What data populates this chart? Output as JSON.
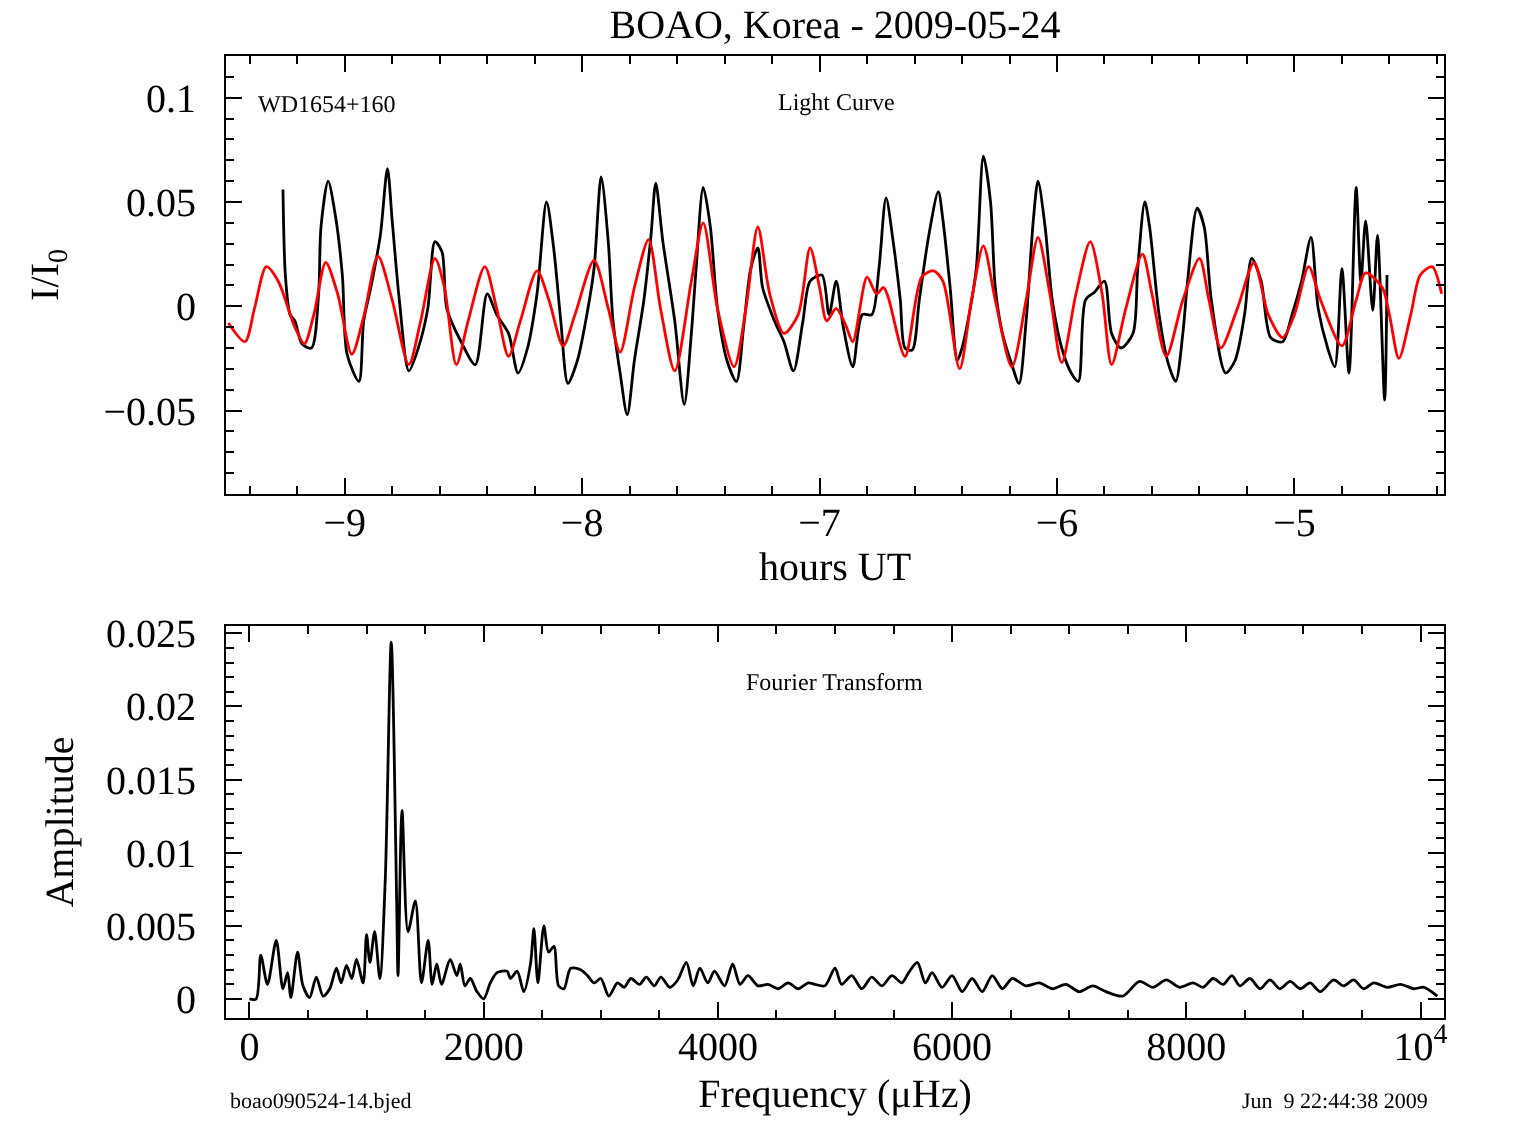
{
  "chart_data": [
    {
      "type": "line",
      "title": "BOAO, Korea - 2009-05-24",
      "xlabel": "hours UT",
      "ylabel": "I/I$_{0}$",
      "annotations": [
        "WD1654+160",
        "Light Curve"
      ],
      "xlim": [
        -9.5,
        -4.37
      ],
      "ylim": [
        -0.09,
        0.12
      ],
      "xticks": [
        {
          "value": -9.4,
          "label": null
        },
        -9,
        {
          "value": -8.8,
          "label": null
        },
        {
          "value": -8.6,
          "label": null
        },
        {
          "value": -8.4,
          "label": null
        },
        {
          "value": -8.2,
          "label": null
        },
        -8,
        {
          "value": -7.8,
          "label": null
        },
        {
          "value": -7.6,
          "label": null
        },
        {
          "value": -7.4,
          "label": null
        },
        {
          "value": -7.2,
          "label": null
        },
        -7,
        {
          "value": -6.8,
          "label": null
        },
        {
          "value": -6.6,
          "label": null
        },
        {
          "value": -6.4,
          "label": null
        },
        {
          "value": -6.2,
          "label": null
        },
        -6,
        {
          "value": -5.8,
          "label": null
        },
        {
          "value": -5.6,
          "label": null
        },
        {
          "value": -5.4,
          "label": null
        },
        {
          "value": -5.2,
          "label": null
        },
        -5,
        {
          "value": -4.8,
          "label": null
        },
        {
          "value": -4.6,
          "label": null
        },
        {
          "value": -4.4,
          "label": null
        },
        {
          "value": -9.2,
          "label": null
        }
      ],
      "yticks": [
        {
          "value": -0.08,
          "label": null
        },
        {
          "value": -0.07,
          "label": null
        },
        {
          "value": -0.06,
          "label": null
        },
        -0.05,
        {
          "value": -0.04,
          "label": null
        },
        {
          "value": -0.03,
          "label": null
        },
        {
          "value": -0.02,
          "label": null
        },
        {
          "value": -0.01,
          "label": null
        },
        0,
        {
          "value": 0.01,
          "label": null
        },
        {
          "value": 0.02,
          "label": null
        },
        {
          "value": 0.03,
          "label": null
        },
        {
          "value": 0.04,
          "label": null
        },
        0.05,
        {
          "value": 0.06,
          "label": null
        },
        {
          "value": 0.07,
          "label": null
        },
        {
          "value": 0.08,
          "label": null
        },
        {
          "value": 0.09,
          "label": null
        },
        0.1,
        {
          "value": 0.11,
          "label": null
        }
      ],
      "series": [
        {
          "color": "#000000",
          "x": [
            -9.26,
            -9.25,
            -9.23,
            -9.21,
            -9.18,
            -9.14,
            -9.11,
            -9.1,
            -9.07,
            -9.04,
            -9.01,
            -8.99,
            -8.94,
            -8.92,
            -8.89,
            -8.85,
            -8.82,
            -8.8,
            -8.77,
            -8.73,
            -8.69,
            -8.65,
            -8.62,
            -8.59,
            -8.57,
            -8.51,
            -8.45,
            -8.4,
            -8.36,
            -8.31,
            -8.27,
            -8.23,
            -8.19,
            -8.15,
            -8.12,
            -8.09,
            -8.06,
            -8.02,
            -7.98,
            -7.95,
            -7.92,
            -7.89,
            -7.87,
            -7.84,
            -7.81,
            -7.78,
            -7.74,
            -7.71,
            -7.69,
            -7.66,
            -7.61,
            -7.57,
            -7.54,
            -7.52,
            -7.49,
            -7.46,
            -7.43,
            -7.39,
            -7.35,
            -7.32,
            -7.29,
            -7.26,
            -7.24,
            -7.19,
            -7.15,
            -7.11,
            -7.07,
            -7.04,
            -6.99,
            -6.96,
            -6.93,
            -6.9,
            -6.86,
            -6.82,
            -6.78,
            -6.75,
            -6.72,
            -6.69,
            -6.66,
            -6.64,
            -6.61,
            -6.58,
            -6.54,
            -6.5,
            -6.48,
            -6.45,
            -6.42,
            -6.4,
            -6.37,
            -6.34,
            -6.31,
            -6.28,
            -6.26,
            -6.23,
            -6.19,
            -6.16,
            -6.13,
            -6.1,
            -6.08,
            -6.05,
            -6.02,
            -5.98,
            -5.94,
            -5.91,
            -5.88,
            -5.84,
            -5.8,
            -5.77,
            -5.73,
            -5.68,
            -5.66,
            -5.63,
            -5.61,
            -5.57,
            -5.53,
            -5.5,
            -5.47,
            -5.45,
            -5.41,
            -5.38,
            -5.35,
            -5.29,
            -5.25,
            -5.21,
            -5.18,
            -5.14,
            -5.1,
            -5.05,
            -5.01,
            -4.97,
            -4.93,
            -4.9,
            -4.86,
            -4.83,
            -4.8,
            -4.77,
            -4.74,
            -4.72,
            -4.7,
            -4.67,
            -4.65,
            -4.62,
            -4.61
          ],
          "values": [
            0.056,
            0.015,
            -0.004,
            -0.007,
            -0.018,
            -0.02,
            0.006,
            0.038,
            0.06,
            0.044,
            0.015,
            -0.023,
            -0.036,
            -0.007,
            0.009,
            0.034,
            0.066,
            0.041,
            0.003,
            -0.031,
            -0.02,
            -0.001,
            0.031,
            0.026,
            -0.001,
            -0.017,
            -0.028,
            0.006,
            -0.004,
            -0.013,
            -0.032,
            -0.02,
            0.006,
            0.05,
            0.028,
            -0.007,
            -0.037,
            -0.026,
            -0.004,
            0.018,
            0.062,
            0.031,
            -0.007,
            -0.032,
            -0.052,
            -0.026,
            0.003,
            0.034,
            0.059,
            0.031,
            -0.007,
            -0.047,
            -0.013,
            0.018,
            0.057,
            0.038,
            -0.001,
            -0.026,
            -0.036,
            -0.01,
            0.018,
            0.028,
            0.009,
            -0.007,
            -0.017,
            -0.031,
            -0.007,
            0.012,
            0.015,
            -0.004,
            0.012,
            -0.01,
            -0.029,
            -0.004,
            -0.004,
            0.018,
            0.052,
            0.031,
            0.003,
            -0.02,
            -0.021,
            0.003,
            0.034,
            0.055,
            0.041,
            0.009,
            -0.026,
            -0.02,
            -0.004,
            0.018,
            0.072,
            0.05,
            0.009,
            -0.013,
            -0.028,
            -0.037,
            -0.007,
            0.041,
            0.06,
            0.038,
            0.003,
            -0.02,
            -0.032,
            -0.036,
            0.003,
            0.007,
            0.012,
            -0.013,
            -0.02,
            -0.013,
            0.018,
            0.05,
            0.038,
            -0.004,
            -0.028,
            -0.036,
            -0.013,
            0.012,
            0.047,
            0.038,
            0.003,
            -0.032,
            -0.026,
            -0.004,
            0.023,
            0.012,
            -0.015,
            -0.017,
            -0.004,
            0.012,
            0.033,
            -0.001,
            -0.02,
            -0.029,
            0.018,
            -0.032,
            0.057,
            0.012,
            0.041,
            -0.002,
            0.034,
            -0.045,
            0.015
          ]
        },
        {
          "color": "#ff0000",
          "x": [
            -9.49,
            -9.42,
            -9.38,
            -9.33,
            -9.28,
            -9.21,
            -9.17,
            -9.13,
            -9.08,
            -9.03,
            -8.97,
            -8.92,
            -8.86,
            -8.8,
            -8.73,
            -8.68,
            -8.62,
            -8.58,
            -8.53,
            -8.48,
            -8.41,
            -8.36,
            -8.31,
            -8.26,
            -8.19,
            -8.14,
            -8.08,
            -8.03,
            -7.95,
            -7.89,
            -7.84,
            -7.78,
            -7.72,
            -7.67,
            -7.61,
            -7.54,
            -7.49,
            -7.43,
            -7.36,
            -7.31,
            -7.26,
            -7.21,
            -7.15,
            -7.09,
            -7.04,
            -7.0,
            -6.97,
            -6.93,
            -6.89,
            -6.86,
            -6.8,
            -6.76,
            -6.73,
            -6.71,
            -6.64,
            -6.57,
            -6.52,
            -6.48,
            -6.41,
            -6.36,
            -6.31,
            -6.26,
            -6.19,
            -6.13,
            -6.08,
            -6.03,
            -5.98,
            -5.92,
            -5.86,
            -5.81,
            -5.77,
            -5.71,
            -5.64,
            -5.6,
            -5.54,
            -5.47,
            -5.4,
            -5.36,
            -5.31,
            -5.24,
            -5.17,
            -5.11,
            -5.05,
            -5.0,
            -4.94,
            -4.89,
            -4.8,
            -4.74,
            -4.7,
            -4.63,
            -4.6,
            -4.56,
            -4.51,
            -4.47,
            -4.42,
            -4.38
          ],
          "values": [
            -0.008,
            -0.017,
            -0.001,
            0.019,
            0.012,
            -0.01,
            -0.018,
            -0.004,
            0.021,
            0.006,
            -0.023,
            -0.005,
            0.024,
            0.003,
            -0.028,
            -0.007,
            0.023,
            0.009,
            -0.028,
            -0.007,
            0.019,
            -0.001,
            -0.024,
            -0.007,
            0.017,
            0.003,
            -0.019,
            -0.004,
            0.022,
            -0.001,
            -0.022,
            0.009,
            0.032,
            -0.001,
            -0.031,
            0.012,
            0.04,
            -0.001,
            -0.029,
            -0.001,
            0.038,
            0.006,
            -0.013,
            -0.004,
            0.028,
            0.009,
            -0.007,
            -0.001,
            -0.009,
            -0.017,
            0.014,
            0.006,
            0.009,
            0.004,
            -0.024,
            0.014,
            0.017,
            0.012,
            -0.03,
            0.003,
            0.029,
            0.003,
            -0.029,
            0.003,
            0.033,
            0.006,
            -0.027,
            0.006,
            0.031,
            0.006,
            -0.028,
            -0.001,
            0.025,
            0.006,
            -0.024,
            0.003,
            0.023,
            0.003,
            -0.02,
            -0.001,
            0.021,
            -0.004,
            -0.015,
            -0.004,
            0.019,
            0.003,
            -0.019,
            0.003,
            0.016,
            0.009,
            -0.004,
            -0.025,
            -0.004,
            0.015,
            0.019,
            0.006
          ]
        }
      ]
    },
    {
      "type": "line",
      "xlabel": "Frequency (μHz)",
      "ylabel": "Amplitude",
      "annotations": [
        "Fourier Transform",
        "boao090524-14.bjed",
        "Jun  9 22:44:38 2009"
      ],
      "xlim": [
        -200,
        10200
      ],
      "ylim": [
        -0.0013,
        0.0255
      ],
      "xticks": [
        0,
        {
          "value": 500,
          "label": null
        },
        {
          "value": 1000,
          "label": null
        },
        {
          "value": 1500,
          "label": null
        },
        2000,
        {
          "value": 2500,
          "label": null
        },
        {
          "value": 3000,
          "label": null
        },
        {
          "value": 3500,
          "label": null
        },
        4000,
        {
          "value": 4500,
          "label": null
        },
        {
          "value": 5000,
          "label": null
        },
        {
          "value": 5500,
          "label": null
        },
        6000,
        {
          "value": 6500,
          "label": null
        },
        {
          "value": 7000,
          "label": null
        },
        {
          "value": 7500,
          "label": null
        },
        8000,
        {
          "value": 8500,
          "label": null
        },
        {
          "value": 9000,
          "label": null
        },
        {
          "value": 9500,
          "label": null
        },
        {
          "value": 10000,
          "label": "10$^{4}$"
        }
      ],
      "yticks": [
        0,
        {
          "value": 0.001,
          "label": null
        },
        {
          "value": 0.002,
          "label": null
        },
        {
          "value": 0.003,
          "label": null
        },
        {
          "value": 0.004,
          "label": null
        },
        0.005,
        {
          "value": 0.006,
          "label": null
        },
        {
          "value": 0.007,
          "label": null
        },
        {
          "value": 0.008,
          "label": null
        },
        {
          "value": 0.009,
          "label": null
        },
        0.01,
        {
          "value": 0.011,
          "label": null
        },
        {
          "value": 0.012,
          "label": null
        },
        {
          "value": 0.013,
          "label": null
        },
        {
          "value": 0.014,
          "label": null
        },
        0.015,
        {
          "value": 0.016,
          "label": null
        },
        {
          "value": 0.017,
          "label": null
        },
        {
          "value": 0.018,
          "label": null
        },
        {
          "value": 0.019,
          "label": null
        },
        0.02,
        {
          "value": 0.021,
          "label": null
        },
        {
          "value": 0.022,
          "label": null
        },
        {
          "value": 0.023,
          "label": null
        },
        {
          "value": 0.024,
          "label": null
        },
        0.025
      ],
      "series": [
        {
          "color": "#000000",
          "x": [
            0,
            57,
            97,
            154,
            229,
            286,
            326,
            354,
            411,
            457,
            514,
            571,
            629,
            686,
            743,
            783,
            829,
            874,
            914,
            971,
            1000,
            1029,
            1069,
            1114,
            1160,
            1211,
            1257,
            1269,
            1303,
            1354,
            1417,
            1469,
            1526,
            1560,
            1600,
            1640,
            1714,
            1771,
            1800,
            1840,
            1886,
            1943,
            2000,
            2057,
            2114,
            2200,
            2229,
            2286,
            2343,
            2400,
            2429,
            2463,
            2514,
            2554,
            2600,
            2640,
            2686,
            2743,
            2829,
            2886,
            2943,
            3000,
            3069,
            3143,
            3200,
            3257,
            3331,
            3389,
            3457,
            3514,
            3589,
            3657,
            3731,
            3789,
            3846,
            3914,
            3971,
            4057,
            4126,
            4189,
            4257,
            4343,
            4429,
            4514,
            4600,
            4686,
            4771,
            4829,
            4914,
            5000,
            5057,
            5143,
            5229,
            5314,
            5400,
            5486,
            5571,
            5629,
            5703,
            5771,
            5829,
            5914,
            6000,
            6086,
            6171,
            6257,
            6343,
            6429,
            6514,
            6629,
            6743,
            6857,
            6971,
            7086,
            7200,
            7314,
            7457,
            7600,
            7714,
            7829,
            7943,
            8057,
            8143,
            8229,
            8314,
            8389,
            8457,
            8543,
            8629,
            8714,
            8800,
            8886,
            8971,
            9057,
            9143,
            9257,
            9343,
            9429,
            9514,
            9600,
            9714,
            9829,
            9943,
            10029,
            10143
          ],
          "values": [
            0,
            0,
            0.003,
            0.001,
            0.004,
            0.0007,
            0.0018,
            0.0001,
            0.0032,
            0.0009,
            0.0001,
            0.0015,
            0.0002,
            0.0007,
            0.0021,
            0.0011,
            0.0023,
            0.0014,
            0.0027,
            0.0011,
            0.0044,
            0.0025,
            0.0046,
            0.0014,
            0.0082,
            0.0244,
            0.0068,
            0.0016,
            0.0129,
            0.0046,
            0.0067,
            0.0011,
            0.004,
            0.001,
            0.0024,
            0.001,
            0.0027,
            0.0016,
            0.0024,
            0.0009,
            0.0014,
            0.0005,
            0.0,
            0.0011,
            0.0018,
            0.0019,
            0.0014,
            0.0019,
            0.0005,
            0.0024,
            0.0048,
            0.0011,
            0.005,
            0.0032,
            0.0036,
            0.0009,
            0.0007,
            0.0021,
            0.002,
            0.0016,
            0.0011,
            0.0014,
            0.0002,
            0.0011,
            0.0008,
            0.0014,
            0.001,
            0.0015,
            0.0009,
            0.0015,
            0.0008,
            0.0013,
            0.0025,
            0.0009,
            0.0021,
            0.0011,
            0.0019,
            0.0009,
            0.0024,
            0.001,
            0.0016,
            0.0009,
            0.001,
            0.0007,
            0.0011,
            0.0007,
            0.0011,
            0.001,
            0.0009,
            0.0021,
            0.001,
            0.0016,
            0.0007,
            0.0015,
            0.0009,
            0.0016,
            0.0011,
            0.0018,
            0.0025,
            0.0011,
            0.0018,
            0.0008,
            0.0016,
            0.0005,
            0.0014,
            0.0005,
            0.0016,
            0.0007,
            0.0014,
            0.0009,
            0.0011,
            0.0007,
            0.001,
            0.0005,
            0.0009,
            0.0005,
            0.0002,
            0.0012,
            0.0008,
            0.0013,
            0.0008,
            0.0011,
            0.0008,
            0.0014,
            0.001,
            0.0016,
            0.0009,
            0.0014,
            0.0007,
            0.0013,
            0.0007,
            0.0012,
            0.0007,
            0.0011,
            0.0005,
            0.0013,
            0.0009,
            0.0013,
            0.0007,
            0.0011,
            0.0008,
            0.001,
            0.0007,
            0.0008,
            0.0002
          ]
        }
      ]
    }
  ]
}
